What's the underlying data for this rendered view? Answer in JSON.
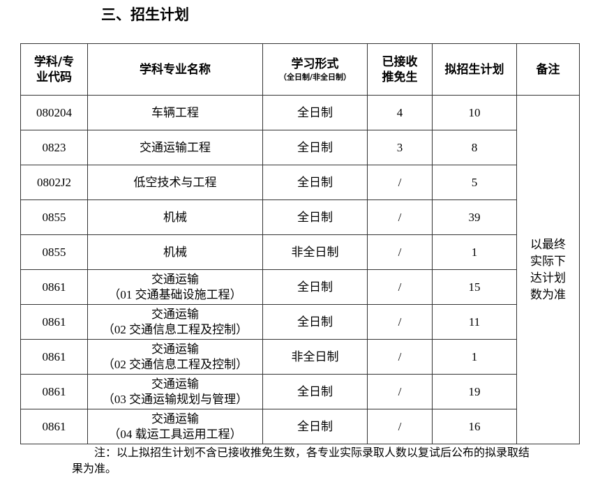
{
  "title": "三、招生计划",
  "table": {
    "headers": {
      "code": "学科/专业代码",
      "name": "学科专业名称",
      "mode": "学习形式",
      "mode_sub": "（全日制/非全日制）",
      "exempt": "已接收推免生",
      "plan": "拟招生计划",
      "remark": "备注"
    },
    "rows": [
      {
        "code": "080204",
        "name": "车辆工程",
        "sub": "",
        "mode": "全日制",
        "exempt": "4",
        "plan": "10"
      },
      {
        "code": "0823",
        "name": "交通运输工程",
        "sub": "",
        "mode": "全日制",
        "exempt": "3",
        "plan": "8"
      },
      {
        "code": "0802J2",
        "name": "低空技术与工程",
        "sub": "",
        "mode": "全日制",
        "exempt": "/",
        "plan": "5"
      },
      {
        "code": "0855",
        "name": "机械",
        "sub": "",
        "mode": "全日制",
        "exempt": "/",
        "plan": "39"
      },
      {
        "code": "0855",
        "name": "机械",
        "sub": "",
        "mode": "非全日制",
        "exempt": "/",
        "plan": "1"
      },
      {
        "code": "0861",
        "name": "交通运输",
        "sub": "（01 交通基础设施工程）",
        "mode": "全日制",
        "exempt": "/",
        "plan": "15"
      },
      {
        "code": "0861",
        "name": "交通运输",
        "sub": "（02 交通信息工程及控制）",
        "mode": "全日制",
        "exempt": "/",
        "plan": "11"
      },
      {
        "code": "0861",
        "name": "交通运输",
        "sub": "（02 交通信息工程及控制）",
        "mode": "非全日制",
        "exempt": "/",
        "plan": "1"
      },
      {
        "code": "0861",
        "name": "交通运输",
        "sub": "（03 交通运输规划与管理）",
        "mode": "全日制",
        "exempt": "/",
        "plan": "19"
      },
      {
        "code": "0861",
        "name": "交通运输",
        "sub": "（04 载运工具运用工程）",
        "mode": "全日制",
        "exempt": "/",
        "plan": "16"
      }
    ],
    "remark": "以最终实际下达计划数为准"
  },
  "note": "注：以上拟招生计划不含已接收推免生数，各专业实际录取人数以复试后公布的拟录取结果为准。"
}
